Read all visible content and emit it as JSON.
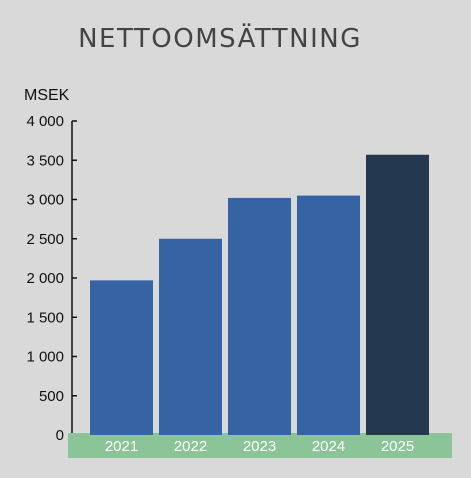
{
  "chart_data": {
    "type": "bar",
    "title": "NETTOOMSÄTTNING",
    "ylabel": "MSEK",
    "xlabel": "",
    "categories": [
      "2021",
      "2022",
      "2023",
      "2024",
      "2025"
    ],
    "values": [
      1970,
      2500,
      3020,
      3050,
      3570
    ],
    "ylim": [
      0,
      4000
    ],
    "yticks": [
      0,
      500,
      1000,
      1500,
      2000,
      2500,
      3000,
      3500,
      4000
    ],
    "ytick_labels": [
      "0",
      "500",
      "1 000",
      "1 500",
      "2 000",
      "2 500",
      "3 000",
      "3 500",
      "4 000"
    ],
    "bar_colors": [
      "#3563a3",
      "#3563a3",
      "#3563a3",
      "#3563a3",
      "#243850"
    ],
    "category_band_color": "#8bc496",
    "grid": false,
    "legend": "none"
  }
}
